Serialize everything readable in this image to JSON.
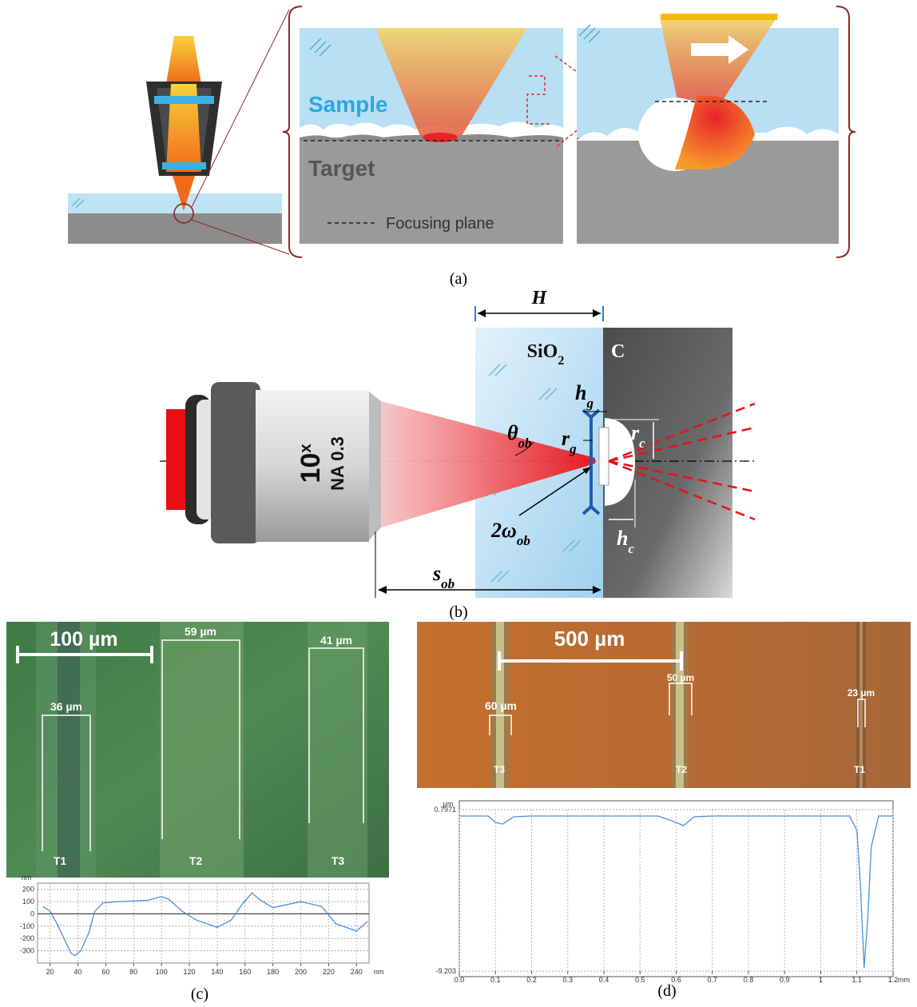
{
  "panel_a": {
    "label": "(a)",
    "sample": "Sample",
    "target": "Target",
    "legend": "Focusing plane"
  },
  "panel_b": {
    "label": "(b)",
    "h_total": "H",
    "material_1": {
      "base": "SiO",
      "sub": "2"
    },
    "material_2": "C",
    "h_g": {
      "base": "h",
      "sub": "g"
    },
    "r_g": {
      "base": "r",
      "sub": "g"
    },
    "theta_ob": {
      "base": "θ",
      "sub": "ob"
    },
    "r_c": {
      "base": "r",
      "sub": "c"
    },
    "omega_ob": {
      "base": "2ω",
      "sub": "ob"
    },
    "h_c": {
      "base": "h",
      "sub": "c"
    },
    "s_ob": {
      "base": "s",
      "sub": "ob"
    },
    "objective": {
      "magnification": {
        "base": "10",
        "sup": "x"
      },
      "aperture": "NA 0.3"
    }
  },
  "panel_c": {
    "label": "(c)",
    "scale_bar": "100 µm",
    "widths": [
      "59 µm",
      "41 µm",
      "36 µm"
    ],
    "tracks": [
      "T1",
      "T2",
      "T3"
    ],
    "profile": {
      "type": "line",
      "y_unit": "nm",
      "x_unit": "nm",
      "x": [
        15,
        20,
        25,
        30,
        35,
        38,
        42,
        48,
        52,
        58,
        70,
        90,
        100,
        105,
        115,
        125,
        140,
        150,
        158,
        165,
        170,
        180,
        200,
        215,
        225,
        240,
        248
      ],
      "values": [
        60,
        20,
        -80,
        -200,
        -320,
        -340,
        -300,
        -150,
        20,
        90,
        100,
        110,
        140,
        120,
        20,
        -50,
        -110,
        -50,
        80,
        170,
        120,
        50,
        100,
        60,
        -80,
        -140,
        -60
      ],
      "xlim": [
        11,
        249
      ],
      "ylim": [
        -400,
        250
      ],
      "xticks": [
        20,
        40,
        60,
        80,
        100,
        120,
        140,
        160,
        180,
        200,
        220,
        240
      ],
      "yticks": [
        200,
        100,
        0,
        -100,
        -200,
        -300
      ],
      "color": "#4a90d9"
    }
  },
  "panel_d": {
    "label": "(d)",
    "scale_bar": "500 µm",
    "widths": [
      "60 µm",
      "50 µm",
      "23 µm"
    ],
    "tracks": [
      "T3",
      "T2",
      "T1"
    ],
    "profile": {
      "type": "line",
      "y_unit": "µm",
      "x_unit": "mm",
      "x": [
        0,
        0.08,
        0.1,
        0.12,
        0.15,
        0.2,
        0.55,
        0.6,
        0.62,
        0.65,
        0.7,
        1.08,
        1.1,
        1.11,
        1.12,
        1.13,
        1.14,
        1.16,
        1.2
      ],
      "values": [
        0.4,
        0.4,
        0.0,
        -0.1,
        0.35,
        0.4,
        0.4,
        0.0,
        -0.2,
        0.35,
        0.4,
        0.4,
        -0.5,
        -4,
        -9.0,
        -6,
        -1.5,
        0.4,
        0.4
      ],
      "xlim": [
        0,
        1.2
      ],
      "ylim": [
        -9.203,
        0.7971
      ],
      "xticks": [
        {
          "value": 0,
          "label": "0.0"
        },
        0.1,
        0.2,
        0.3,
        0.4,
        0.5,
        0.6,
        0.7,
        0.8,
        0.9,
        1,
        1.1,
        1.2
      ],
      "yticks": [
        0.7971,
        -9.203
      ],
      "color": "#4a90d9"
    }
  }
}
